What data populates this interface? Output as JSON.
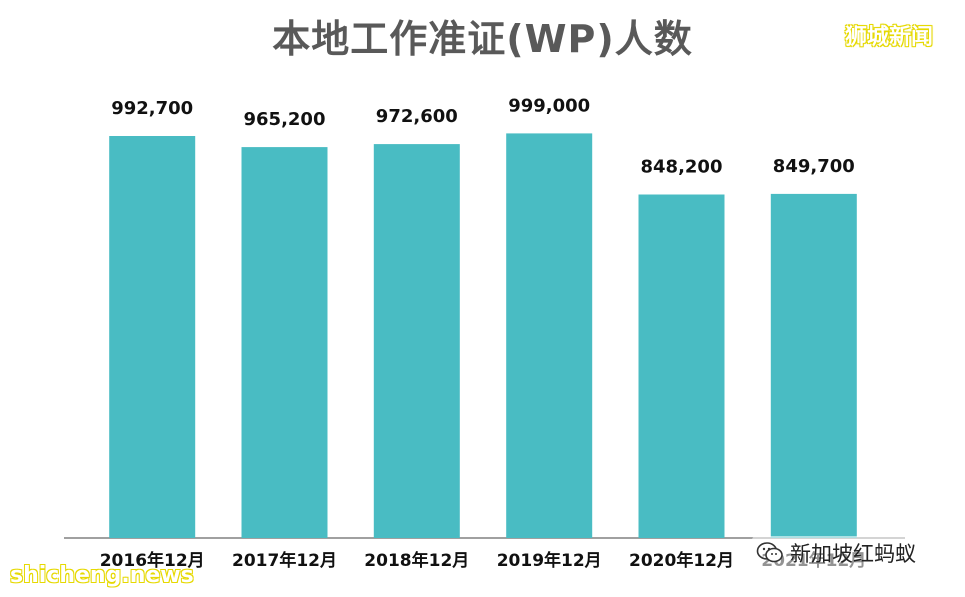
{
  "header": {
    "title": "本地工作准证(WP)人数",
    "brand_tag": "狮城新闻"
  },
  "watermarks": {
    "left_text": "shicheng.news",
    "right_text": "新加坡红蚂蚁",
    "right_icon": "wechat-icon"
  },
  "colors": {
    "bar": "#49bcc3",
    "title": "#595959",
    "label": "#111111",
    "axis": "#808080",
    "brand": "#e6d900"
  },
  "chart_data": {
    "type": "bar",
    "title": "本地工作准证(WP)人数",
    "categories": [
      "2016年12月",
      "2017年12月",
      "2018年12月",
      "2019年12月",
      "2020年12月",
      "2021年12月"
    ],
    "values": [
      992700,
      965200,
      972600,
      999000,
      848200,
      849700
    ],
    "value_labels": [
      "992,700",
      "965,200",
      "972,600",
      "999,000",
      "848,200",
      "849,700"
    ],
    "ylim": [
      0,
      1000000
    ],
    "grid": false,
    "legend": "none",
    "xlabel": "",
    "ylabel": ""
  }
}
